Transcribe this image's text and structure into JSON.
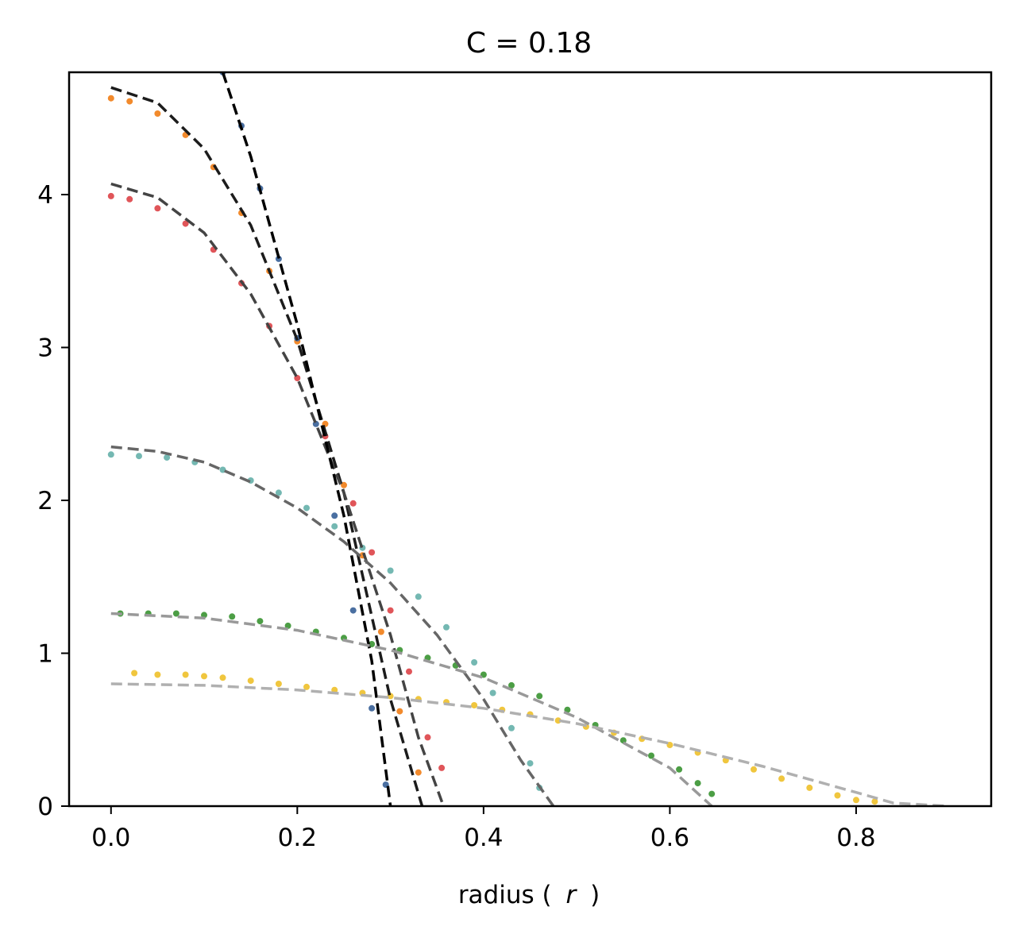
{
  "chart_data": {
    "type": "scatter",
    "title": "C = 0.18",
    "xlabel_main": "radius (",
    "xlabel_var": "r",
    "xlabel_end": ")",
    "ylabel": "",
    "xlim": [
      -0.045,
      0.945
    ],
    "ylim": [
      0,
      4.8
    ],
    "xticks": [
      0.0,
      0.2,
      0.4,
      0.6,
      0.8
    ],
    "xtick_labels": [
      "0.0",
      "0.2",
      "0.4",
      "0.6",
      "0.8"
    ],
    "yticks": [
      0,
      1,
      2,
      3,
      4
    ],
    "ytick_labels": [
      "0",
      "1",
      "2",
      "3",
      "4"
    ],
    "grid": false,
    "series": [
      {
        "color": "#f0c63e",
        "points": [
          [
            0.025,
            0.87
          ],
          [
            0.05,
            0.86
          ],
          [
            0.08,
            0.86
          ],
          [
            0.1,
            0.85
          ],
          [
            0.12,
            0.84
          ],
          [
            0.15,
            0.82
          ],
          [
            0.18,
            0.8
          ],
          [
            0.21,
            0.78
          ],
          [
            0.24,
            0.76
          ],
          [
            0.27,
            0.74
          ],
          [
            0.3,
            0.72
          ],
          [
            0.33,
            0.7
          ],
          [
            0.36,
            0.68
          ],
          [
            0.39,
            0.66
          ],
          [
            0.42,
            0.63
          ],
          [
            0.45,
            0.6
          ],
          [
            0.48,
            0.56
          ],
          [
            0.51,
            0.52
          ],
          [
            0.54,
            0.48
          ],
          [
            0.57,
            0.44
          ],
          [
            0.6,
            0.4
          ],
          [
            0.63,
            0.35
          ],
          [
            0.66,
            0.3
          ],
          [
            0.69,
            0.24
          ],
          [
            0.72,
            0.18
          ],
          [
            0.75,
            0.12
          ],
          [
            0.78,
            0.07
          ],
          [
            0.8,
            0.04
          ],
          [
            0.82,
            0.03
          ]
        ]
      },
      {
        "color": "#4c9e45",
        "points": [
          [
            0.01,
            1.26
          ],
          [
            0.04,
            1.26
          ],
          [
            0.07,
            1.26
          ],
          [
            0.1,
            1.25
          ],
          [
            0.13,
            1.24
          ],
          [
            0.16,
            1.21
          ],
          [
            0.19,
            1.18
          ],
          [
            0.22,
            1.14
          ],
          [
            0.25,
            1.1
          ],
          [
            0.28,
            1.06
          ],
          [
            0.31,
            1.02
          ],
          [
            0.34,
            0.97
          ],
          [
            0.37,
            0.92
          ],
          [
            0.4,
            0.86
          ],
          [
            0.43,
            0.79
          ],
          [
            0.46,
            0.72
          ],
          [
            0.49,
            0.63
          ],
          [
            0.52,
            0.53
          ],
          [
            0.55,
            0.43
          ],
          [
            0.58,
            0.33
          ],
          [
            0.61,
            0.24
          ],
          [
            0.63,
            0.15
          ],
          [
            0.645,
            0.08
          ]
        ]
      },
      {
        "color": "#74b8b2",
        "points": [
          [
            0.0,
            2.3
          ],
          [
            0.03,
            2.29
          ],
          [
            0.06,
            2.28
          ],
          [
            0.09,
            2.25
          ],
          [
            0.12,
            2.2
          ],
          [
            0.15,
            2.13
          ],
          [
            0.18,
            2.05
          ],
          [
            0.21,
            1.95
          ],
          [
            0.24,
            1.83
          ],
          [
            0.27,
            1.69
          ],
          [
            0.3,
            1.54
          ],
          [
            0.33,
            1.37
          ],
          [
            0.36,
            1.17
          ],
          [
            0.39,
            0.94
          ],
          [
            0.41,
            0.74
          ],
          [
            0.43,
            0.51
          ],
          [
            0.45,
            0.28
          ],
          [
            0.46,
            0.12
          ]
        ]
      },
      {
        "color": "#e05559",
        "points": [
          [
            0.0,
            3.99
          ],
          [
            0.02,
            3.97
          ],
          [
            0.05,
            3.91
          ],
          [
            0.08,
            3.81
          ],
          [
            0.11,
            3.64
          ],
          [
            0.14,
            3.42
          ],
          [
            0.17,
            3.14
          ],
          [
            0.2,
            2.8
          ],
          [
            0.23,
            2.42
          ],
          [
            0.26,
            1.98
          ],
          [
            0.28,
            1.66
          ],
          [
            0.3,
            1.28
          ],
          [
            0.32,
            0.88
          ],
          [
            0.34,
            0.45
          ],
          [
            0.355,
            0.25
          ]
        ]
      },
      {
        "color": "#f28a2c",
        "points": [
          [
            0.0,
            4.63
          ],
          [
            0.02,
            4.61
          ],
          [
            0.05,
            4.53
          ],
          [
            0.08,
            4.39
          ],
          [
            0.11,
            4.18
          ],
          [
            0.14,
            3.88
          ],
          [
            0.17,
            3.5
          ],
          [
            0.2,
            3.04
          ],
          [
            0.23,
            2.5
          ],
          [
            0.25,
            2.1
          ],
          [
            0.27,
            1.64
          ],
          [
            0.29,
            1.14
          ],
          [
            0.31,
            0.62
          ],
          [
            0.33,
            0.22
          ]
        ]
      },
      {
        "color": "#4a6fa1",
        "points": [
          [
            0.12,
            4.8
          ],
          [
            0.14,
            4.45
          ],
          [
            0.16,
            4.04
          ],
          [
            0.18,
            3.58
          ],
          [
            0.2,
            3.06
          ],
          [
            0.22,
            2.5
          ],
          [
            0.24,
            1.9
          ],
          [
            0.26,
            1.28
          ],
          [
            0.28,
            0.64
          ],
          [
            0.295,
            0.14
          ]
        ]
      }
    ],
    "curves": [
      {
        "color": "#1c1c1c",
        "points": [
          [
            0.0,
            4.7
          ],
          [
            0.05,
            4.6
          ],
          [
            0.1,
            4.3
          ],
          [
            0.15,
            3.8
          ],
          [
            0.2,
            3.05
          ],
          [
            0.25,
            2.05
          ],
          [
            0.3,
            0.7
          ],
          [
            0.334,
            0.0
          ]
        ]
      },
      {
        "color": "#444444",
        "points": [
          [
            0.0,
            4.07
          ],
          [
            0.05,
            3.98
          ],
          [
            0.1,
            3.75
          ],
          [
            0.15,
            3.35
          ],
          [
            0.2,
            2.8
          ],
          [
            0.25,
            2.05
          ],
          [
            0.3,
            1.12
          ],
          [
            0.33,
            0.45
          ],
          [
            0.357,
            0.0
          ]
        ]
      },
      {
        "color": "#000000",
        "points": [
          [
            0.12,
            4.8
          ],
          [
            0.15,
            4.25
          ],
          [
            0.2,
            3.15
          ],
          [
            0.25,
            1.9
          ],
          [
            0.28,
            0.95
          ],
          [
            0.3,
            0.0
          ]
        ]
      },
      {
        "color": "#666666",
        "points": [
          [
            0.0,
            2.35
          ],
          [
            0.05,
            2.32
          ],
          [
            0.1,
            2.25
          ],
          [
            0.15,
            2.12
          ],
          [
            0.2,
            1.95
          ],
          [
            0.25,
            1.73
          ],
          [
            0.3,
            1.46
          ],
          [
            0.35,
            1.12
          ],
          [
            0.4,
            0.7
          ],
          [
            0.44,
            0.3
          ],
          [
            0.475,
            0.0
          ]
        ]
      },
      {
        "color": "#999999",
        "points": [
          [
            0.0,
            1.26
          ],
          [
            0.1,
            1.23
          ],
          [
            0.2,
            1.15
          ],
          [
            0.3,
            1.02
          ],
          [
            0.4,
            0.84
          ],
          [
            0.5,
            0.58
          ],
          [
            0.6,
            0.25
          ],
          [
            0.645,
            0.0
          ]
        ]
      },
      {
        "color": "#b0b0b0",
        "points": [
          [
            0.0,
            0.8
          ],
          [
            0.1,
            0.79
          ],
          [
            0.2,
            0.76
          ],
          [
            0.3,
            0.71
          ],
          [
            0.4,
            0.64
          ],
          [
            0.5,
            0.54
          ],
          [
            0.6,
            0.41
          ],
          [
            0.7,
            0.26
          ],
          [
            0.8,
            0.09
          ],
          [
            0.84,
            0.02
          ],
          [
            0.9,
            0.0
          ]
        ]
      }
    ]
  }
}
